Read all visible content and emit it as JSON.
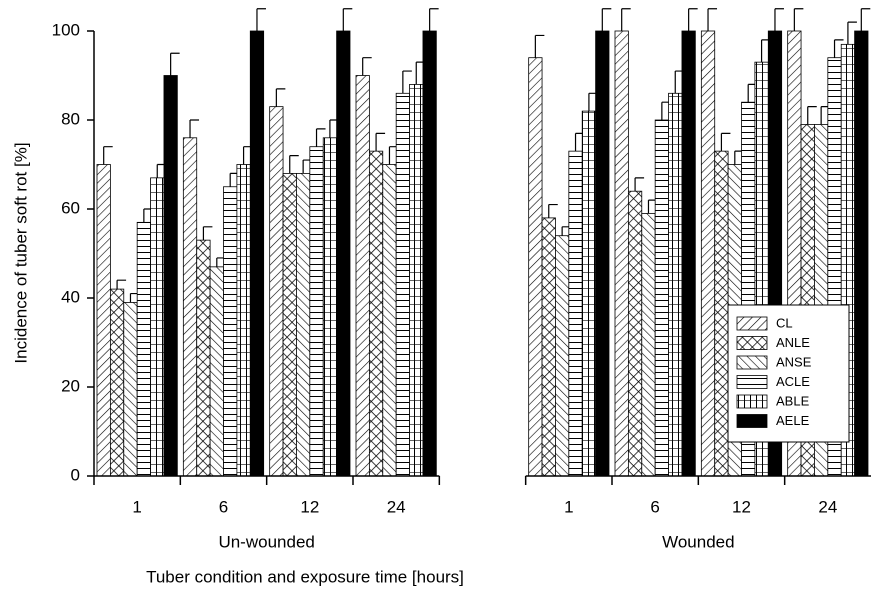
{
  "chart_data": {
    "type": "bar",
    "y_label": "Incidence of tuber soft rot [%]",
    "x_label": "Tuber condition and exposure time [hours]",
    "categories": [
      "1",
      "6",
      "12",
      "24",
      null,
      "1",
      "6",
      "12",
      "24"
    ],
    "group_labels": [
      "Un-wounded",
      "Wounded"
    ],
    "series": [
      {
        "name": "CL",
        "color": "#ffffff",
        "hatch": "diagonal",
        "values": [
          70,
          76,
          83,
          90,
          null,
          94,
          100,
          100,
          100
        ],
        "errors": [
          4,
          4,
          4,
          4,
          null,
          5,
          5,
          5,
          5
        ]
      },
      {
        "name": "ANLE",
        "color": "#ffffff",
        "hatch": "cross",
        "values": [
          42,
          53,
          68,
          73,
          null,
          58,
          64,
          73,
          79
        ],
        "errors": [
          2,
          3,
          4,
          4,
          null,
          3,
          3,
          4,
          4
        ]
      },
      {
        "name": "ANSE",
        "color": "#ffffff",
        "hatch": "back-diagonal",
        "values": [
          39,
          47,
          68,
          70,
          null,
          54,
          59,
          70,
          79
        ],
        "errors": [
          2,
          2,
          3,
          4,
          null,
          2,
          3,
          3,
          4
        ]
      },
      {
        "name": "ACLE",
        "color": "#ffffff",
        "hatch": "horizontal",
        "values": [
          57,
          65,
          74,
          86,
          null,
          73,
          80,
          84,
          94
        ],
        "errors": [
          3,
          3,
          4,
          5,
          null,
          4,
          4,
          4,
          4
        ]
      },
      {
        "name": "ABLE",
        "color": "#ffffff",
        "hatch": "grid",
        "values": [
          67,
          70,
          76,
          88,
          null,
          82,
          86,
          93,
          97
        ],
        "errors": [
          3,
          4,
          4,
          5,
          null,
          4,
          5,
          5,
          5
        ]
      },
      {
        "name": "AELE",
        "color": "#000000",
        "hatch": "solid",
        "values": [
          90,
          100,
          100,
          100,
          null,
          100,
          100,
          100,
          100
        ],
        "errors": [
          5,
          5,
          5,
          5,
          null,
          5,
          5,
          5,
          5
        ]
      }
    ],
    "ylim": [
      0,
      100
    ],
    "yticks": [
      0,
      20,
      40,
      60,
      80,
      100
    ],
    "legend": "lower-right"
  }
}
